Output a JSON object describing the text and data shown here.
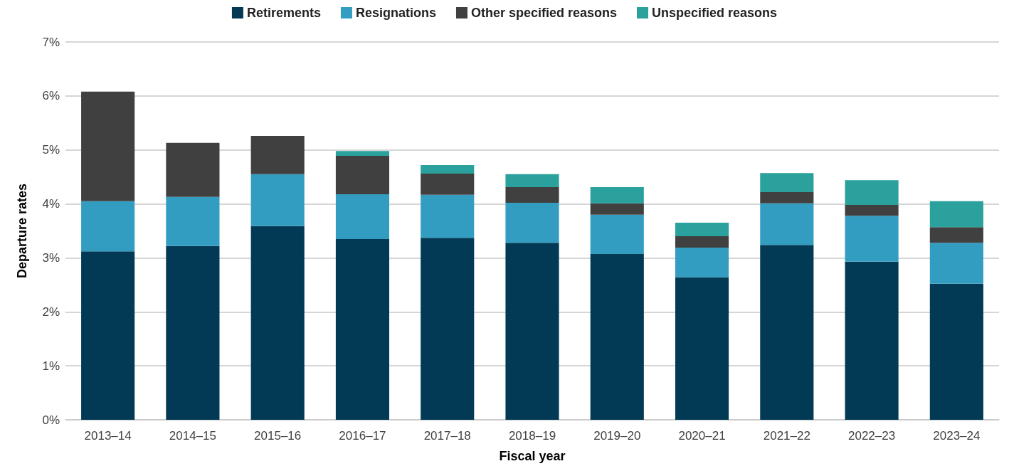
{
  "chart_data": {
    "type": "bar",
    "stacked": true,
    "xlabel": "Fiscal year",
    "ylabel": "Departure rates",
    "categories": [
      "2013–14",
      "2014–15",
      "2015–16",
      "2016–17",
      "2017–18",
      "2018–19",
      "2019–20",
      "2020–21",
      "2021–22",
      "2022–23",
      "2023–24"
    ],
    "series": [
      {
        "name": "Retirements",
        "color": "#023a55",
        "values": [
          3.12,
          3.22,
          3.59,
          3.35,
          3.37,
          3.28,
          3.07,
          2.64,
          3.24,
          2.93,
          2.52
        ]
      },
      {
        "name": "Resignations",
        "color": "#339dc1",
        "values": [
          0.93,
          0.91,
          0.96,
          0.83,
          0.8,
          0.74,
          0.73,
          0.55,
          0.77,
          0.85,
          0.76
        ]
      },
      {
        "name": "Other specified reasons",
        "color": "#404040",
        "values": [
          2.03,
          1.0,
          0.71,
          0.71,
          0.39,
          0.29,
          0.21,
          0.21,
          0.21,
          0.2,
          0.29
        ]
      },
      {
        "name": "Unspecified reasons",
        "color": "#2aa19c",
        "values": [
          0,
          0,
          0,
          0.09,
          0.16,
          0.24,
          0.3,
          0.25,
          0.35,
          0.46,
          0.48
        ]
      }
    ],
    "ylim": [
      0,
      7
    ],
    "yticks": [
      {
        "value": 0,
        "label": "0%"
      },
      {
        "value": 1,
        "label": "1%"
      },
      {
        "value": 2,
        "label": "2%"
      },
      {
        "value": 3,
        "label": "3%"
      },
      {
        "value": 4,
        "label": "4%"
      },
      {
        "value": 5,
        "label": "5%"
      },
      {
        "value": 6,
        "label": "6%"
      },
      {
        "value": 7,
        "label": "7%"
      }
    ],
    "grid": "y",
    "legend": "top"
  }
}
